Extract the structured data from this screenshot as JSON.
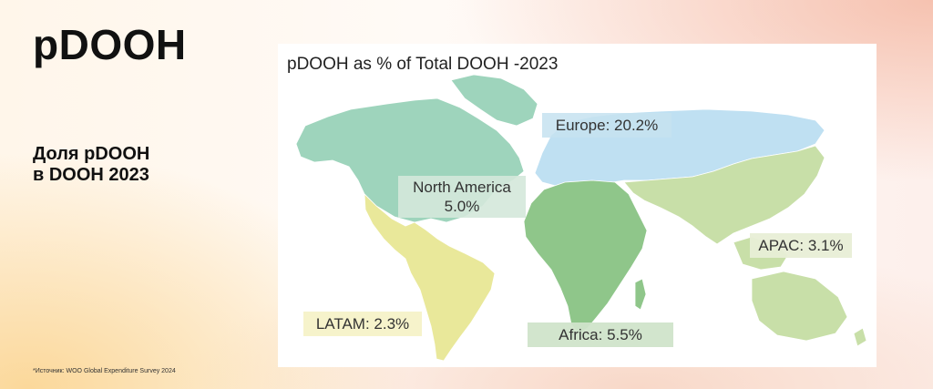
{
  "page": {
    "title": "pDOOH",
    "subtitle_line1": "Доля pDOOH",
    "subtitle_line2": "в DOOH 2023",
    "footnote": "*Источник: WOO Global Expenditure Survey 2024"
  },
  "map": {
    "title": "pDOOH as % of Total DOOH -2023",
    "regions": {
      "europe": {
        "label": "Europe: 20.2%",
        "color": "#bfe0f2"
      },
      "north_america": {
        "label_line1": "North America",
        "label_line2": "5.0%",
        "color": "#9ed4bc"
      },
      "apac": {
        "label": "APAC: 3.1%",
        "color": "#c8dfa8"
      },
      "latam": {
        "label": "LATAM: 2.3%",
        "color": "#e9e89a"
      },
      "africa": {
        "label": "Africa: 5.5%",
        "color": "#8fc68a"
      }
    }
  }
}
